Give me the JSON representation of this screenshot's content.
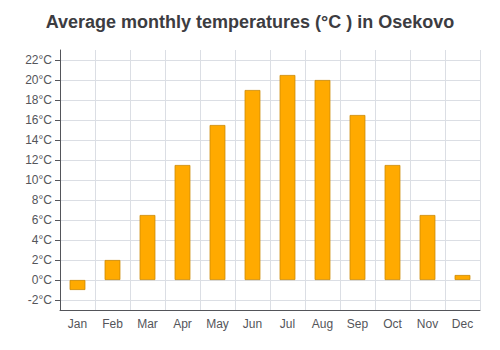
{
  "chart_data": {
    "type": "bar",
    "title": "Average monthly temperatures (°C ) in Osekovo",
    "categories": [
      "Jan",
      "Feb",
      "Mar",
      "Apr",
      "May",
      "Jun",
      "Jul",
      "Aug",
      "Sep",
      "Oct",
      "Nov",
      "Dec"
    ],
    "values": [
      -1.0,
      2.0,
      6.5,
      11.5,
      15.5,
      19.0,
      20.5,
      20.0,
      16.5,
      11.5,
      6.5,
      0.5
    ],
    "color": "#FFAA00",
    "ylim": [
      -3,
      23
    ],
    "yticks": [
      {
        "value": -2,
        "label": "-2°C"
      },
      {
        "value": 0,
        "label": "0°C"
      },
      {
        "value": 2,
        "label": "2°C"
      },
      {
        "value": 4,
        "label": "4°C"
      },
      {
        "value": 6,
        "label": "6°C"
      },
      {
        "value": 8,
        "label": "8°C"
      },
      {
        "value": 10,
        "label": "10°C"
      },
      {
        "value": 12,
        "label": "12°C"
      },
      {
        "value": 14,
        "label": "14°C"
      },
      {
        "value": 16,
        "label": "16°C"
      },
      {
        "value": 18,
        "label": "18°C"
      },
      {
        "value": 20,
        "label": "20°C"
      },
      {
        "value": 22,
        "label": "22°C"
      }
    ],
    "grid": true
  }
}
